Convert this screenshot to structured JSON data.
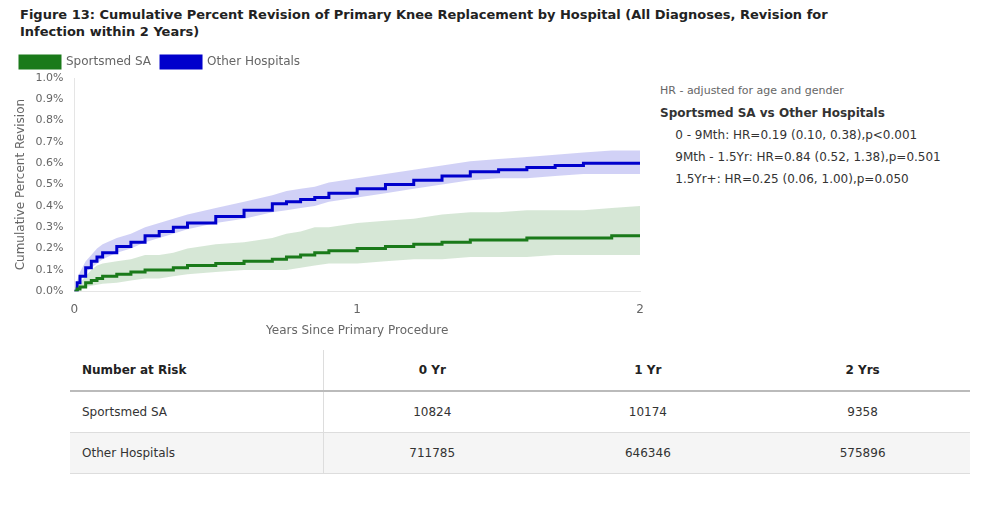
{
  "chart_data": {
    "type": "line",
    "title": [
      "Figure 13: Cumulative Percent Revision of Primary Knee Replacement by Hospital (All Diagnoses, Revision for",
      "Infection within 2 Years)"
    ],
    "xlabel": "Years Since Primary Procedure",
    "ylabel": "Cumulative Percent Revision",
    "xlim": [
      0,
      2
    ],
    "ylim": [
      0,
      0.01
    ],
    "xticks": [
      0,
      1,
      2
    ],
    "yticks": [
      {
        "value": 0.0,
        "label": "0.0%"
      },
      {
        "value": 0.001,
        "label": "0.1%"
      },
      {
        "value": 0.002,
        "label": "0.2%"
      },
      {
        "value": 0.003,
        "label": "0.3%"
      },
      {
        "value": 0.004,
        "label": "0.4%"
      },
      {
        "value": 0.005,
        "label": "0.5%"
      },
      {
        "value": 0.006,
        "label": "0.6%"
      },
      {
        "value": 0.007,
        "label": "0.7%"
      },
      {
        "value": 0.008,
        "label": "0.8%"
      },
      {
        "value": 0.009,
        "label": "0.9%"
      },
      {
        "value": 0.01,
        "label": "1.0%"
      }
    ],
    "grid": false,
    "legend": "upper left",
    "line_style": "step",
    "x": [
      0.0,
      0.01,
      0.02,
      0.04,
      0.06,
      0.08,
      0.1,
      0.15,
      0.2,
      0.25,
      0.3,
      0.35,
      0.4,
      0.5,
      0.6,
      0.7,
      0.75,
      0.8,
      0.85,
      0.9,
      1.0,
      1.1,
      1.2,
      1.3,
      1.4,
      1.5,
      1.6,
      1.7,
      1.8,
      1.9,
      2.0
    ],
    "series": [
      {
        "name": "Sportsmed SA",
        "color": "#1a7a1a",
        "values": [
          0.0,
          0.0001,
          0.0002,
          0.0004,
          0.0005,
          0.0006,
          0.0007,
          0.0008,
          0.0009,
          0.001,
          0.001,
          0.0011,
          0.0012,
          0.0013,
          0.0014,
          0.0015,
          0.0016,
          0.0017,
          0.0018,
          0.0019,
          0.002,
          0.0021,
          0.0022,
          0.0023,
          0.0024,
          0.0024,
          0.0025,
          0.0025,
          0.0025,
          0.0026,
          0.0026
        ],
        "ci_lo": [
          0.0,
          5e-05,
          0.0001,
          0.0002,
          0.00025,
          0.0003,
          0.00035,
          0.0004,
          0.0005,
          0.0006,
          0.0006,
          0.0007,
          0.0008,
          0.0009,
          0.001,
          0.001,
          0.001,
          0.0011,
          0.0012,
          0.0013,
          0.0013,
          0.0014,
          0.0015,
          0.0015,
          0.0016,
          0.0016,
          0.0016,
          0.0017,
          0.0017,
          0.0017,
          0.0017
        ],
        "ci_hi": [
          0.0,
          0.0002,
          0.0004,
          0.0007,
          0.001,
          0.0012,
          0.0013,
          0.0014,
          0.0015,
          0.0017,
          0.0017,
          0.0018,
          0.002,
          0.0022,
          0.0023,
          0.0025,
          0.0027,
          0.0028,
          0.003,
          0.003,
          0.0032,
          0.0033,
          0.0034,
          0.0036,
          0.0037,
          0.0037,
          0.0038,
          0.0038,
          0.0038,
          0.0039,
          0.004
        ]
      },
      {
        "name": "Other Hospitals",
        "color": "#0000cc",
        "values": [
          0.0,
          0.0004,
          0.0007,
          0.0011,
          0.0014,
          0.0016,
          0.0018,
          0.0021,
          0.0023,
          0.0026,
          0.0028,
          0.003,
          0.0032,
          0.0035,
          0.0038,
          0.0041,
          0.0042,
          0.0043,
          0.0044,
          0.0046,
          0.0048,
          0.005,
          0.0052,
          0.0054,
          0.0056,
          0.0057,
          0.0058,
          0.0059,
          0.006,
          0.006,
          0.006
        ],
        "ci_lo": [
          0.0,
          0.0003,
          0.0005,
          0.0009,
          0.0011,
          0.0013,
          0.0015,
          0.0018,
          0.002,
          0.0023,
          0.0025,
          0.0027,
          0.0029,
          0.0032,
          0.0034,
          0.0037,
          0.0038,
          0.0039,
          0.004,
          0.0042,
          0.0044,
          0.0046,
          0.0048,
          0.005,
          0.0052,
          0.0053,
          0.0053,
          0.0054,
          0.0055,
          0.0055,
          0.0055
        ],
        "ci_hi": [
          0.0,
          0.0005,
          0.0009,
          0.0014,
          0.0017,
          0.002,
          0.0022,
          0.0025,
          0.0027,
          0.003,
          0.0032,
          0.0034,
          0.0036,
          0.0039,
          0.0042,
          0.0045,
          0.0047,
          0.0048,
          0.0049,
          0.0051,
          0.0053,
          0.0055,
          0.0057,
          0.0059,
          0.0061,
          0.0062,
          0.0063,
          0.0064,
          0.0065,
          0.0066,
          0.0066
        ]
      }
    ],
    "annotations": [
      "HR - adjusted for age and gender",
      "Sportsmed SA vs Other Hospitals",
      "    0 - 9Mth: HR=0.19 (0.10, 0.38),p<0.001",
      "    9Mth - 1.5Yr: HR=0.84 (0.52, 1.38),p=0.501",
      "    1.5Yr+: HR=0.25 (0.06, 1.00),p=0.050"
    ],
    "table": {
      "columns": [
        "Number at Risk",
        "0 Yr",
        "1 Yr",
        "2 Yrs"
      ],
      "rows": [
        [
          "Sportsmed SA",
          "10824",
          "10174",
          "9358"
        ],
        [
          "Other Hospitals",
          "711785",
          "646346",
          "575896"
        ]
      ]
    }
  }
}
